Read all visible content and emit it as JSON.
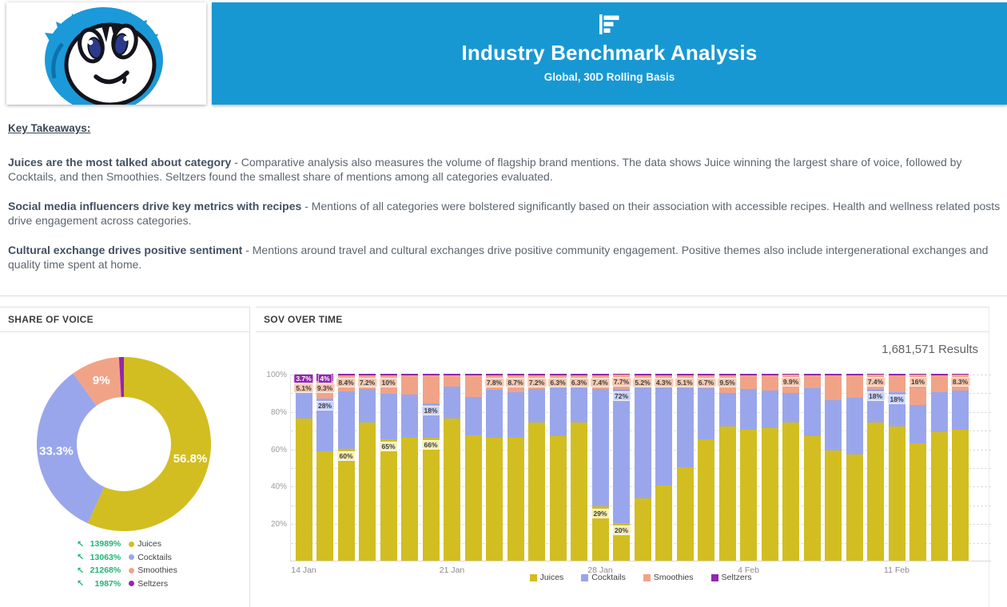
{
  "header": {
    "title": "Industry Benchmark Analysis",
    "subtitle": "Global, 30D Rolling Basis",
    "banner_color": "#1898d2",
    "icon": "bar-chart-icon"
  },
  "takeaways": {
    "heading": "Key Takeaways:",
    "items": [
      {
        "lead": "Juices are the most talked about category",
        "text": " - Comparative analysis also measures the volume of flagship brand mentions. The data shows Juice winning the largest share of voice, followed by Cocktails, and then Smoothies. Seltzers found the smallest share of mentions among all categories evaluated."
      },
      {
        "lead": "Social media influencers drive key metrics with recipes",
        "text": " - Mentions of all categories were bolstered significantly based on their association with accessible recipes. Health and wellness related posts drive engagement across categories."
      },
      {
        "lead": "Cultural exchange drives positive sentiment",
        "text": " - Mentions around travel and cultural exchanges drive positive community engagement. Positive themes also include intergenerational exchanges and quality time spent at home."
      }
    ]
  },
  "share_panel": {
    "title": "SHARE OF VOICE"
  },
  "sov_panel": {
    "title": "SOV OVER TIME",
    "results": "1,681,571 Results"
  },
  "chart_data": [
    {
      "type": "pie",
      "title": "SHARE OF VOICE",
      "donut": true,
      "labels": [
        "Juices",
        "Cocktails",
        "Smoothies",
        "Seltzers"
      ],
      "values": [
        56.8,
        33.3,
        9,
        0.9
      ],
      "value_labels": [
        "56.8%",
        "33.3%",
        "9%",
        null
      ],
      "colors": [
        "#d2be21",
        "#9aa6eb",
        "#f1a387",
        "#9327ad"
      ],
      "legend_position": "bottom",
      "legend": [
        {
          "change": "13989%",
          "label": "Juices"
        },
        {
          "change": "13063%",
          "label": "Cocktails"
        },
        {
          "change": "21268%",
          "label": "Smoothies"
        },
        {
          "change": "1987%",
          "label": "Seltzers"
        }
      ],
      "legend_change_color": "#21b573",
      "trend_icon": "↖"
    },
    {
      "type": "bar",
      "stacked": true,
      "title": "SOV OVER TIME",
      "results_label": "1,681,571 Results",
      "series_names": [
        "Juices",
        "Cocktails",
        "Smoothies",
        "Seltzers"
      ],
      "series_keys": [
        "juices",
        "cocktails",
        "smoothies",
        "seltzers"
      ],
      "colors": {
        "juices": "#d2be21",
        "cocktails": "#9aa6eb",
        "smoothies": "#f1a387",
        "seltzers": "#9327ad"
      },
      "chip_colors": {
        "juices": {
          "bg": "#f4ecb0",
          "fg": "#3c3c3c"
        },
        "cocktails": {
          "bg": "#c9d1f8",
          "fg": "#3c3c3c"
        },
        "smoothies": {
          "bg": "#f8c7ae",
          "fg": "#3c3c3c"
        },
        "seltzers": {
          "bg": "#9327ad",
          "fg": "#ffffff"
        }
      },
      "ylim": [
        0,
        100
      ],
      "grid_step": 10,
      "y_tick_labels": [
        "20%",
        "40%",
        "60%",
        "80%",
        "100%"
      ],
      "x_tick_labels": [
        {
          "index": 0,
          "label": "14 Jan"
        },
        {
          "index": 7,
          "label": "21 Jan"
        },
        {
          "index": 14,
          "label": "28 Jan"
        },
        {
          "index": 21,
          "label": "4 Feb"
        },
        {
          "index": 28,
          "label": "11 Feb"
        }
      ],
      "bars": [
        {
          "v": [
            76.0,
            15.2,
            5.1,
            3.7
          ],
          "labels": {
            "seltzers": "3.7%",
            "smoothies": "5.1%"
          }
        },
        {
          "v": [
            58.7,
            28.0,
            9.3,
            4.0
          ],
          "labels": {
            "seltzers": "4%",
            "smoothies": "9.3%",
            "cocktails": "28%"
          }
        },
        {
          "v": [
            60.0,
            30.8,
            8.4,
            0.8
          ],
          "labels": {
            "smoothies": "8.4%",
            "juices": "60%"
          }
        },
        {
          "v": [
            74.0,
            18.0,
            7.2,
            0.8
          ],
          "labels": {
            "smoothies": "7.2%"
          }
        },
        {
          "v": [
            65.0,
            24.2,
            10.0,
            0.8
          ],
          "labels": {
            "smoothies": "10%",
            "juices": "65%"
          }
        },
        {
          "v": [
            66.0,
            22.7,
            10.5,
            0.8
          ],
          "labels": {}
        },
        {
          "v": [
            66.0,
            18.0,
            15.2,
            0.8
          ],
          "labels": {
            "cocktails": "18%",
            "juices": "66%"
          }
        },
        {
          "v": [
            76.0,
            17.0,
            6.2,
            0.8
          ],
          "labels": {}
        },
        {
          "v": [
            67.0,
            20.7,
            11.5,
            0.8
          ],
          "labels": {}
        },
        {
          "v": [
            66.0,
            25.4,
            7.8,
            0.8
          ],
          "labels": {
            "smoothies": "7.8%"
          }
        },
        {
          "v": [
            66.0,
            24.3,
            8.7,
            1.0
          ],
          "labels": {
            "smoothies": "8.7%"
          }
        },
        {
          "v": [
            74.0,
            17.8,
            7.2,
            1.0
          ],
          "labels": {
            "smoothies": "7.2%"
          }
        },
        {
          "v": [
            66.5,
            26.4,
            6.3,
            0.8
          ],
          "labels": {
            "smoothies": "6.3%"
          }
        },
        {
          "v": [
            74.0,
            18.9,
            6.3,
            0.8
          ],
          "labels": {
            "smoothies": "6.3%"
          }
        },
        {
          "v": [
            29.0,
            62.8,
            7.4,
            0.8
          ],
          "labels": {
            "smoothies": "7.4%",
            "juices": "29%"
          }
        },
        {
          "v": [
            20.0,
            72.0,
            7.7,
            0.3
          ],
          "labels": {
            "smoothies": "7.7%",
            "cocktails": "72%",
            "juices": "20%"
          }
        },
        {
          "v": [
            33.5,
            60.5,
            5.2,
            0.8
          ],
          "labels": {
            "smoothies": "5.2%"
          }
        },
        {
          "v": [
            40.0,
            55.0,
            4.3,
            0.7
          ],
          "labels": {
            "smoothies": "4.3%"
          }
        },
        {
          "v": [
            50.0,
            44.0,
            5.1,
            0.9
          ],
          "labels": {
            "smoothies": "5.1%"
          }
        },
        {
          "v": [
            65.0,
            27.5,
            6.7,
            0.8
          ],
          "labels": {
            "smoothies": "6.7%"
          }
        },
        {
          "v": [
            72.0,
            17.7,
            9.5,
            0.8
          ],
          "labels": {
            "smoothies": "9.5%"
          }
        },
        {
          "v": [
            70.0,
            21.7,
            7.5,
            0.8
          ],
          "labels": {}
        },
        {
          "v": [
            71.0,
            19.9,
            8.3,
            0.8
          ],
          "labels": {}
        },
        {
          "v": [
            74.0,
            15.6,
            9.9,
            0.5
          ],
          "labels": {
            "smoothies": "9.9%"
          }
        },
        {
          "v": [
            66.5,
            26.0,
            6.5,
            1.0
          ],
          "labels": {}
        },
        {
          "v": [
            59.0,
            27.0,
            13.0,
            1.0
          ],
          "labels": {}
        },
        {
          "v": [
            57.0,
            30.0,
            12.0,
            1.0
          ],
          "labels": {}
        },
        {
          "v": [
            74.0,
            18.0,
            7.4,
            0.6
          ],
          "labels": {
            "smoothies": "7.4%",
            "cocktails": "18%"
          }
        },
        {
          "v": [
            72.0,
            18.0,
            9.2,
            0.8
          ],
          "labels": {
            "cocktails": "18%"
          }
        },
        {
          "v": [
            63.0,
            20.5,
            16.0,
            0.5
          ],
          "labels": {
            "smoothies": "16%"
          }
        },
        {
          "v": [
            69.0,
            21.0,
            9.2,
            0.8
          ],
          "labels": {}
        },
        {
          "v": [
            70.0,
            21.2,
            8.3,
            0.5
          ],
          "labels": {
            "smoothies": "8.3%"
          }
        }
      ]
    }
  ]
}
